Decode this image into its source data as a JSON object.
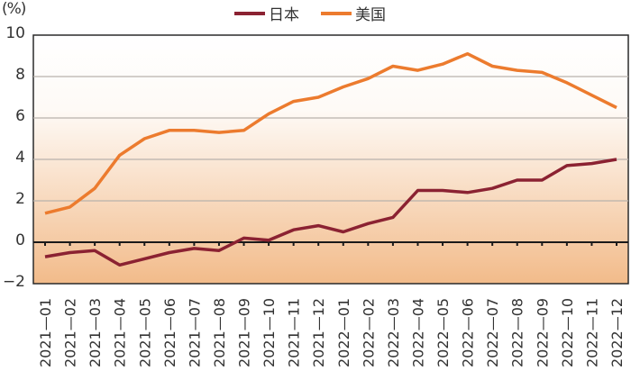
{
  "header": {
    "unit": "(%)"
  },
  "legend": [
    {
      "label": "日本",
      "color": "#8b2232"
    },
    {
      "label": "美国",
      "color": "#ec7b2e"
    }
  ],
  "colors": {
    "japan": "#8b2232",
    "us": "#ec7b2e",
    "frame": "#2a2a2a",
    "grid": "#b9b2ac",
    "gradient_top": "#ffffff",
    "gradient_bottom": "#f2bb8a"
  },
  "chart_data": {
    "type": "line",
    "title": "",
    "xlabel": "",
    "ylabel": "(%)",
    "ylim": [
      -2,
      10
    ],
    "yticks": [
      -2,
      0,
      2,
      4,
      6,
      8,
      10
    ],
    "grid": true,
    "legend_position": "top",
    "categories": [
      "2021-01",
      "2021-02",
      "2021-03",
      "2021-04",
      "2021-05",
      "2021-06",
      "2021-07",
      "2021-08",
      "2021-09",
      "2021-10",
      "2021-11",
      "2021-12",
      "2022-01",
      "2022-02",
      "2022-03",
      "2022-04",
      "2022-05",
      "2022-06",
      "2022-07",
      "2022-08",
      "2022-09",
      "2022-10",
      "2022-11",
      "2022-12"
    ],
    "series": [
      {
        "name": "日本",
        "values": [
          -0.7,
          -0.5,
          -0.4,
          -1.1,
          -0.8,
          -0.5,
          -0.3,
          -0.4,
          0.2,
          0.1,
          0.6,
          0.8,
          0.5,
          0.9,
          1.2,
          2.5,
          2.5,
          2.4,
          2.6,
          3.0,
          3.0,
          3.7,
          3.8,
          4.0
        ]
      },
      {
        "name": "美国",
        "values": [
          1.4,
          1.7,
          2.6,
          4.2,
          5.0,
          5.4,
          5.4,
          5.3,
          5.4,
          6.2,
          6.8,
          7.0,
          7.5,
          7.9,
          8.5,
          8.3,
          8.6,
          9.1,
          8.5,
          8.3,
          8.2,
          7.7,
          7.1,
          6.5
        ]
      }
    ]
  }
}
